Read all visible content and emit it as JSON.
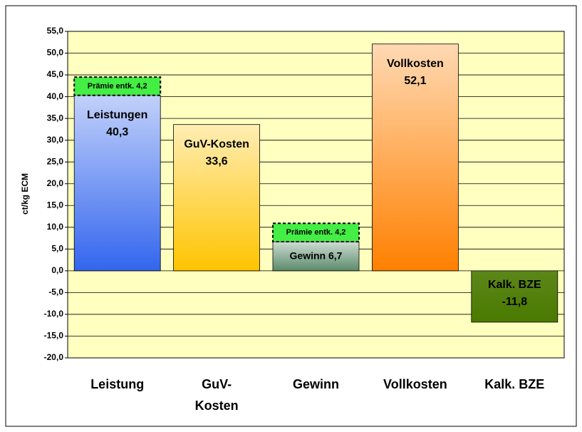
{
  "chart_data": {
    "type": "bar",
    "y_label": "ct/kg ECM",
    "categories": [
      "Leistung",
      "GuV-Kosten",
      "Gewinn",
      "Vollkosten",
      "Kalk. BZE"
    ],
    "series": [
      {
        "values": [
          40.3,
          33.6,
          6.7,
          52.1,
          -11.8
        ],
        "labels": [
          "Leistungen",
          "GuV-Kosten",
          "Gewinn",
          "Vollkosten",
          "Kalk. BZE"
        ],
        "value_labels": [
          "40,3",
          "33,6",
          "6,7",
          "52,1",
          "-11,8"
        ],
        "colors": [
          "#3366ee",
          "#ffc400",
          "#5a8a6a",
          "#ff8000",
          "#4a7a00"
        ]
      },
      {
        "name": "Prämie entk.",
        "values": [
          4.2,
          null,
          4.2,
          null,
          null
        ],
        "value_labels": [
          "4,2",
          null,
          "4,2",
          null,
          null
        ],
        "color": "#44ee44"
      }
    ],
    "ylim": [
      -20,
      55
    ],
    "yticks": [
      {
        "value": -20,
        "label": "-20,0"
      },
      {
        "value": -15,
        "label": "-15,0"
      },
      {
        "value": -10,
        "label": "-10,0"
      },
      {
        "value": -5,
        "label": "-5,0"
      },
      {
        "value": 0,
        "label": "0,0"
      },
      {
        "value": 5,
        "label": "5,0"
      },
      {
        "value": 10,
        "label": "10,0"
      },
      {
        "value": 15,
        "label": "15,0"
      },
      {
        "value": 20,
        "label": "20,0"
      },
      {
        "value": 25,
        "label": "25,0"
      },
      {
        "value": 30,
        "label": "30,0"
      },
      {
        "value": 35,
        "label": "35,0"
      },
      {
        "value": 40,
        "label": "40,0"
      },
      {
        "value": 45,
        "label": "45,0"
      },
      {
        "value": 50,
        "label": "50,0"
      },
      {
        "value": 55,
        "label": "55,0"
      }
    ],
    "grid": true,
    "plot_background": "#ffffc0"
  }
}
